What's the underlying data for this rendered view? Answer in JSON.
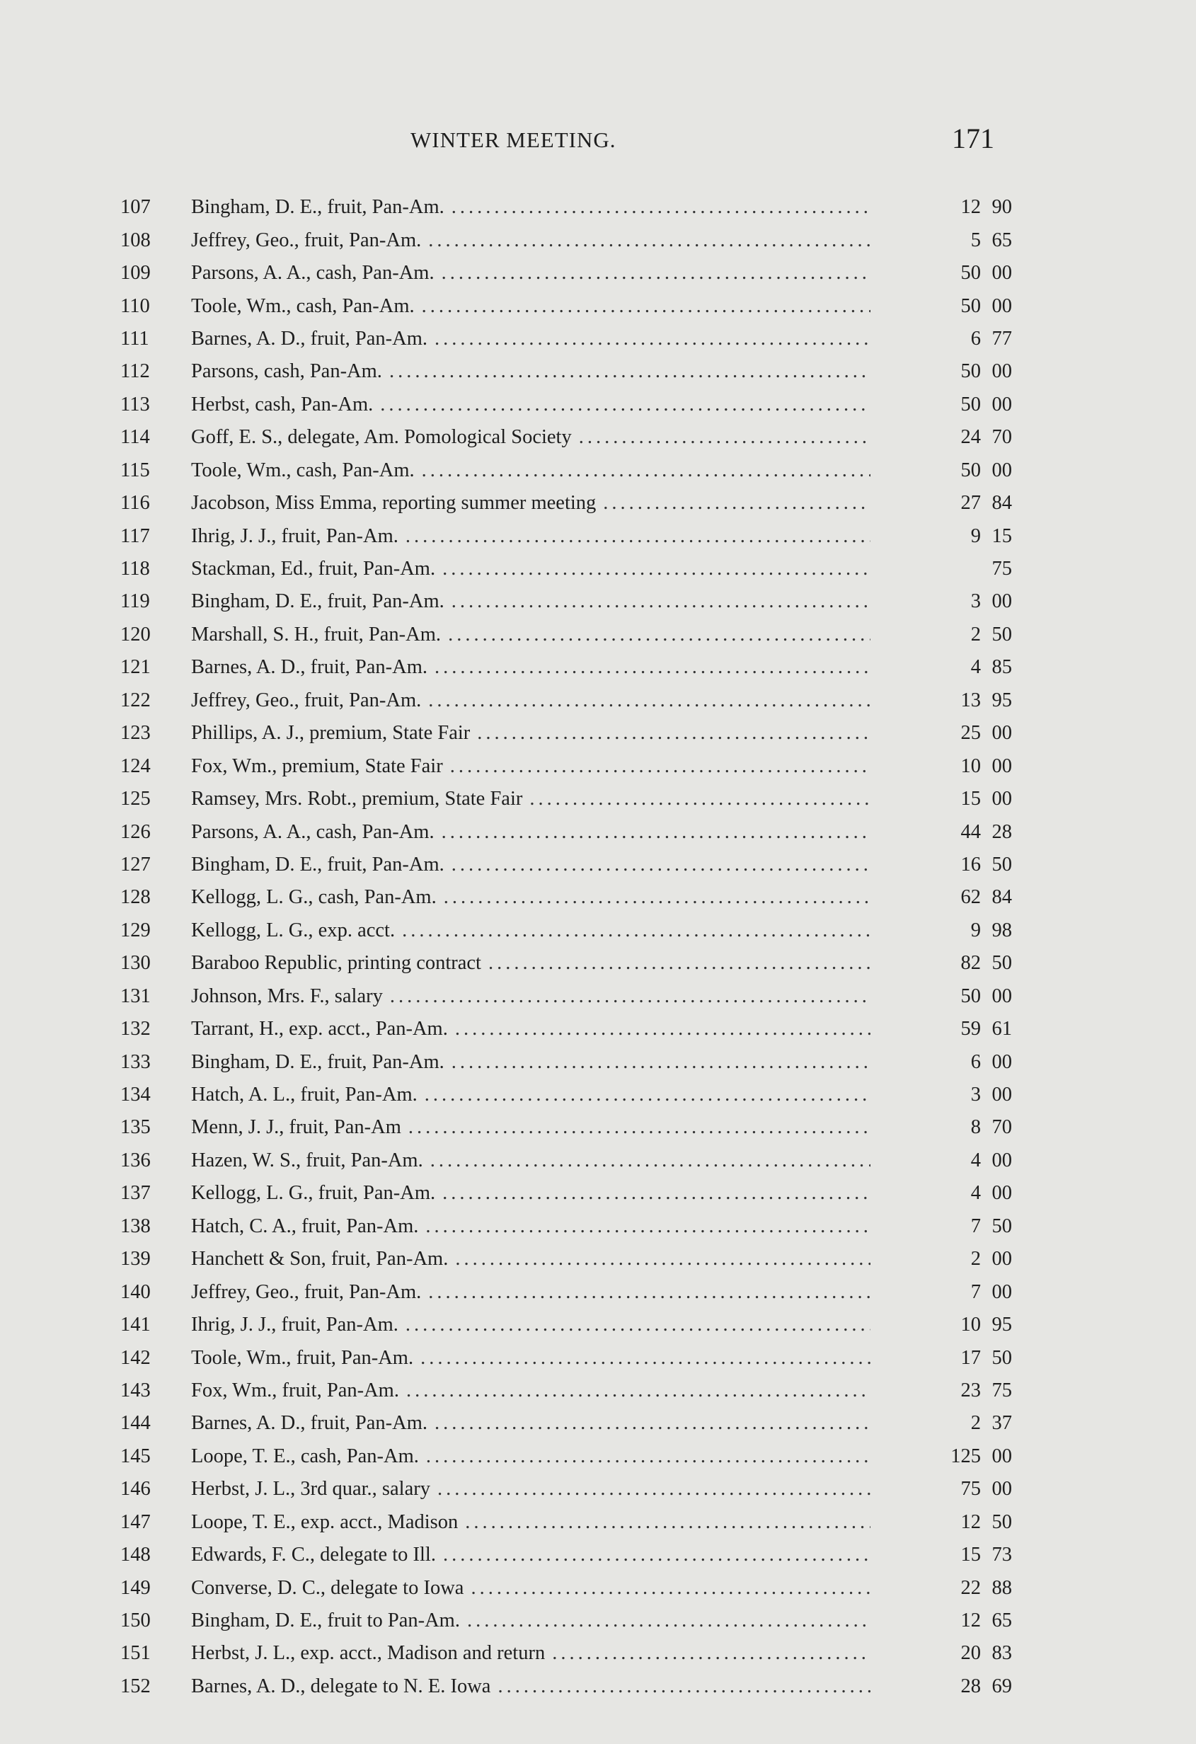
{
  "header": {
    "title": "WINTER MEETING.",
    "page_number": "171"
  },
  "entries": [
    {
      "no": "107",
      "desc": "Bingham, D. E., fruit, Pan-Am.",
      "dollars": "12",
      "cents": "90"
    },
    {
      "no": "108",
      "desc": "Jeffrey, Geo., fruit, Pan-Am.",
      "dollars": "5",
      "cents": "65"
    },
    {
      "no": "109",
      "desc": "Parsons, A. A., cash, Pan-Am.",
      "dollars": "50",
      "cents": "00"
    },
    {
      "no": "110",
      "desc": "Toole, Wm., cash, Pan-Am.",
      "dollars": "50",
      "cents": "00"
    },
    {
      "no": "111",
      "desc": "Barnes, A. D., fruit, Pan-Am.",
      "dollars": "6",
      "cents": "77"
    },
    {
      "no": "112",
      "desc": "Parsons, cash, Pan-Am.",
      "dollars": "50",
      "cents": "00"
    },
    {
      "no": "113",
      "desc": "Herbst, cash, Pan-Am.",
      "dollars": "50",
      "cents": "00"
    },
    {
      "no": "114",
      "desc": "Goff, E. S., delegate, Am. Pomological Society",
      "dollars": "24",
      "cents": "70"
    },
    {
      "no": "115",
      "desc": "Toole, Wm., cash, Pan-Am.",
      "dollars": "50",
      "cents": "00"
    },
    {
      "no": "116",
      "desc": "Jacobson, Miss Emma, reporting summer meeting",
      "dollars": "27",
      "cents": "84"
    },
    {
      "no": "117",
      "desc": "Ihrig, J. J., fruit, Pan-Am.",
      "dollars": "9",
      "cents": "15"
    },
    {
      "no": "118",
      "desc": "Stackman, Ed., fruit, Pan-Am.",
      "dollars": "",
      "cents": "75"
    },
    {
      "no": "119",
      "desc": "Bingham, D. E., fruit, Pan-Am.",
      "dollars": "3",
      "cents": "00"
    },
    {
      "no": "120",
      "desc": "Marshall, S. H., fruit, Pan-Am.",
      "dollars": "2",
      "cents": "50"
    },
    {
      "no": "121",
      "desc": "Barnes, A. D., fruit, Pan-Am.",
      "dollars": "4",
      "cents": "85"
    },
    {
      "no": "122",
      "desc": "Jeffrey, Geo., fruit, Pan-Am.",
      "dollars": "13",
      "cents": "95"
    },
    {
      "no": "123",
      "desc": "Phillips, A. J., premium, State Fair",
      "dollars": "25",
      "cents": "00"
    },
    {
      "no": "124",
      "desc": "Fox, Wm., premium, State Fair",
      "dollars": "10",
      "cents": "00"
    },
    {
      "no": "125",
      "desc": "Ramsey, Mrs. Robt., premium, State Fair",
      "dollars": "15",
      "cents": "00"
    },
    {
      "no": "126",
      "desc": "Parsons, A. A., cash, Pan-Am.",
      "dollars": "44",
      "cents": "28"
    },
    {
      "no": "127",
      "desc": "Bingham, D. E., fruit, Pan-Am.",
      "dollars": "16",
      "cents": "50"
    },
    {
      "no": "128",
      "desc": "Kellogg, L. G., cash, Pan-Am.",
      "dollars": "62",
      "cents": "84"
    },
    {
      "no": "129",
      "desc": "Kellogg, L. G., exp. acct.",
      "dollars": "9",
      "cents": "98"
    },
    {
      "no": "130",
      "desc": "Baraboo Republic, printing contract",
      "dollars": "82",
      "cents": "50"
    },
    {
      "no": "131",
      "desc": "Johnson, Mrs. F., salary",
      "dollars": "50",
      "cents": "00"
    },
    {
      "no": "132",
      "desc": "Tarrant, H., exp. acct., Pan-Am.",
      "dollars": "59",
      "cents": "61"
    },
    {
      "no": "133",
      "desc": "Bingham, D. E., fruit, Pan-Am.",
      "dollars": "6",
      "cents": "00"
    },
    {
      "no": "134",
      "desc": "Hatch, A. L., fruit, Pan-Am.",
      "dollars": "3",
      "cents": "00"
    },
    {
      "no": "135",
      "desc": "Menn, J. J., fruit, Pan-Am",
      "dollars": "8",
      "cents": "70"
    },
    {
      "no": "136",
      "desc": "Hazen, W. S., fruit, Pan-Am.",
      "dollars": "4",
      "cents": "00"
    },
    {
      "no": "137",
      "desc": "Kellogg, L. G., fruit, Pan-Am.",
      "dollars": "4",
      "cents": "00"
    },
    {
      "no": "138",
      "desc": "Hatch, C. A., fruit, Pan-Am.",
      "dollars": "7",
      "cents": "50"
    },
    {
      "no": "139",
      "desc": "Hanchett & Son, fruit, Pan-Am.",
      "dollars": "2",
      "cents": "00"
    },
    {
      "no": "140",
      "desc": "Jeffrey, Geo., fruit, Pan-Am.",
      "dollars": "7",
      "cents": "00"
    },
    {
      "no": "141",
      "desc": "Ihrig, J. J., fruit, Pan-Am.",
      "dollars": "10",
      "cents": "95"
    },
    {
      "no": "142",
      "desc": "Toole, Wm., fruit, Pan-Am.",
      "dollars": "17",
      "cents": "50"
    },
    {
      "no": "143",
      "desc": "Fox, Wm., fruit, Pan-Am.",
      "dollars": "23",
      "cents": "75"
    },
    {
      "no": "144",
      "desc": "Barnes, A. D., fruit, Pan-Am.",
      "dollars": "2",
      "cents": "37"
    },
    {
      "no": "145",
      "desc": "Loope, T. E., cash, Pan-Am.",
      "dollars": "125",
      "cents": "00"
    },
    {
      "no": "146",
      "desc": "Herbst, J. L., 3rd quar., salary",
      "dollars": "75",
      "cents": "00"
    },
    {
      "no": "147",
      "desc": "Loope, T. E., exp. acct., Madison",
      "dollars": "12",
      "cents": "50"
    },
    {
      "no": "148",
      "desc": "Edwards, F. C., delegate to Ill.",
      "dollars": "15",
      "cents": "73"
    },
    {
      "no": "149",
      "desc": "Converse, D. C., delegate to Iowa",
      "dollars": "22",
      "cents": "88"
    },
    {
      "no": "150",
      "desc": "Bingham, D. E., fruit to Pan-Am.",
      "dollars": "12",
      "cents": "65"
    },
    {
      "no": "151",
      "desc": "Herbst, J. L., exp. acct., Madison and return",
      "dollars": "20",
      "cents": "83"
    },
    {
      "no": "152",
      "desc": "Barnes, A. D., delegate to N. E. Iowa",
      "dollars": "28",
      "cents": "69"
    }
  ]
}
